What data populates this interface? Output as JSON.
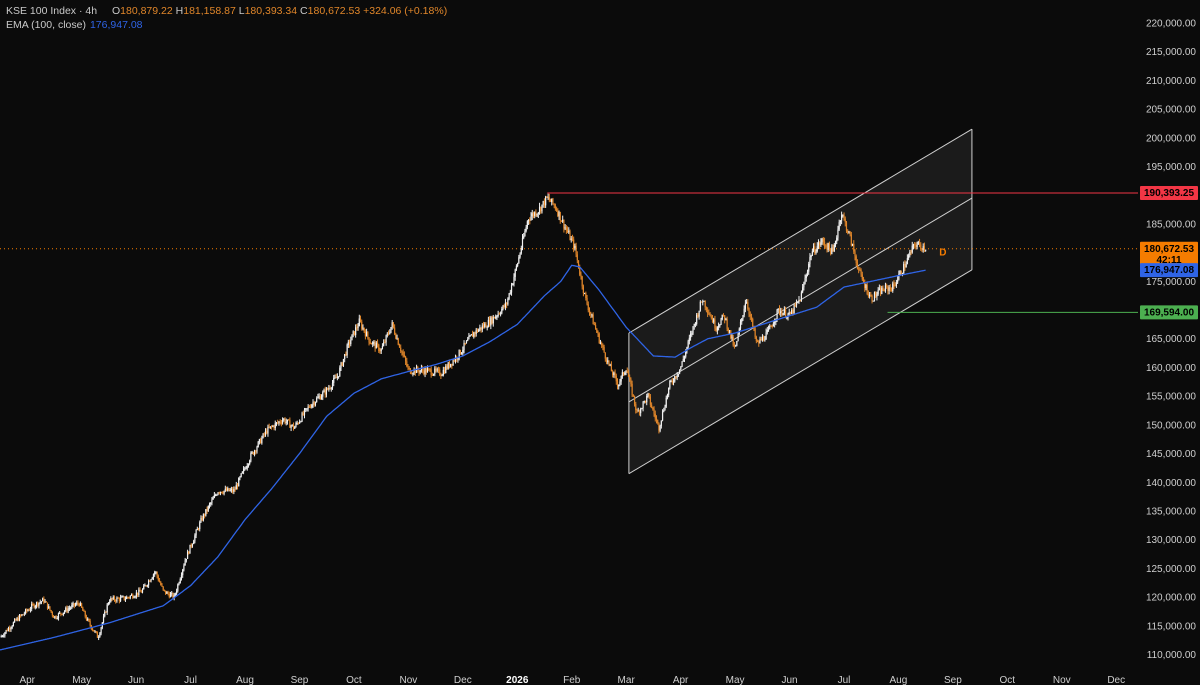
{
  "legend": {
    "symbol": "KSE 100 Index · 4h",
    "open_label": "O",
    "open": "180,879.22",
    "high_label": "H",
    "high": "181,158.87",
    "low_label": "L",
    "low": "180,393.34",
    "close_label": "C",
    "close": "180,672.53",
    "change": "+324.06 (+0.18%)",
    "ema_label": "EMA (100, close)",
    "ema_value": "176,947.08"
  },
  "colors": {
    "background": "#0b0b0b",
    "up_candle": "#f2f2f2",
    "down_candle": "#e0862a",
    "ema": "#2f64e6",
    "resistance": "#f23645",
    "support": "#4caf50",
    "last_price": "#f57c00",
    "channel_fill": "#2a2a2a",
    "channel_line": "#cfcfcf"
  },
  "chart_data": {
    "type": "candlestick",
    "title": "KSE 100 Index · 4h",
    "ylim": [
      108000,
      224000
    ],
    "y_ticks": [
      110000,
      115000,
      120000,
      125000,
      130000,
      135000,
      140000,
      145000,
      150000,
      155000,
      160000,
      165000,
      170000,
      175000,
      180000,
      185000,
      190000,
      195000,
      200000,
      205000,
      210000,
      215000,
      220000
    ],
    "y_tick_labels": [
      "110,000.00",
      "115,000.00",
      "120,000.00",
      "125,000.00",
      "130,000.00",
      "135,000.00",
      "140,000.00",
      "145,000.00",
      "150,000.00",
      "155,000.00",
      "160,000.00",
      "165,000.00",
      "170,000.00",
      "175,000.00",
      "180,000.00",
      "185,000.00",
      "190,000.00",
      "195,000.00",
      "200,000.00",
      "205,000.00",
      "210,000.00",
      "215,000.00",
      "220,000.00"
    ],
    "x_ticks": [
      {
        "t": 0.5,
        "label": "Apr",
        "bold": false
      },
      {
        "t": 1.5,
        "label": "May",
        "bold": false
      },
      {
        "t": 2.5,
        "label": "Jun",
        "bold": false
      },
      {
        "t": 3.5,
        "label": "Jul",
        "bold": false
      },
      {
        "t": 4.5,
        "label": "Aug",
        "bold": false
      },
      {
        "t": 5.5,
        "label": "Sep",
        "bold": false
      },
      {
        "t": 6.5,
        "label": "Oct",
        "bold": false
      },
      {
        "t": 7.5,
        "label": "Nov",
        "bold": false
      },
      {
        "t": 8.5,
        "label": "Dec",
        "bold": false
      },
      {
        "t": 9.5,
        "label": "2026",
        "bold": true
      },
      {
        "t": 10.5,
        "label": "Feb",
        "bold": false
      },
      {
        "t": 11.5,
        "label": "Mar",
        "bold": false
      },
      {
        "t": 12.5,
        "label": "Apr",
        "bold": false
      },
      {
        "t": 13.5,
        "label": "May",
        "bold": false
      },
      {
        "t": 14.5,
        "label": "Jun",
        "bold": false
      },
      {
        "t": 15.5,
        "label": "Jul",
        "bold": false
      },
      {
        "t": 16.5,
        "label": "Aug",
        "bold": false
      },
      {
        "t": 17.5,
        "label": "Sep",
        "bold": false
      },
      {
        "t": 18.5,
        "label": "Oct",
        "bold": false
      },
      {
        "t": 19.5,
        "label": "Nov",
        "bold": false
      },
      {
        "t": 20.5,
        "label": "Dec",
        "bold": false
      }
    ],
    "price_path": [
      [
        0.0,
        113000
      ],
      [
        0.3,
        116000
      ],
      [
        0.6,
        118500
      ],
      [
        0.8,
        119500
      ],
      [
        1.0,
        116500
      ],
      [
        1.25,
        118000
      ],
      [
        1.45,
        119000
      ],
      [
        1.6,
        116000
      ],
      [
        1.8,
        113000
      ],
      [
        2.0,
        119500
      ],
      [
        2.3,
        119800
      ],
      [
        2.6,
        121000
      ],
      [
        2.85,
        124500
      ],
      [
        3.0,
        121000
      ],
      [
        3.2,
        120000
      ],
      [
        3.4,
        126500
      ],
      [
        3.7,
        133500
      ],
      [
        4.0,
        138500
      ],
      [
        4.3,
        138500
      ],
      [
        4.6,
        144500
      ],
      [
        4.9,
        149000
      ],
      [
        5.2,
        151000
      ],
      [
        5.4,
        149500
      ],
      [
        5.7,
        153500
      ],
      [
        6.0,
        156000
      ],
      [
        6.2,
        158500
      ],
      [
        6.4,
        164000
      ],
      [
        6.6,
        168000
      ],
      [
        6.8,
        164500
      ],
      [
        7.0,
        163000
      ],
      [
        7.2,
        167500
      ],
      [
        7.5,
        159500
      ],
      [
        7.8,
        159500
      ],
      [
        8.1,
        159000
      ],
      [
        8.4,
        162000
      ],
      [
        8.7,
        166000
      ],
      [
        9.0,
        168000
      ],
      [
        9.3,
        171000
      ],
      [
        9.5,
        178000
      ],
      [
        9.7,
        186000
      ],
      [
        9.9,
        187500
      ],
      [
        10.05,
        189500
      ],
      [
        10.2,
        188000
      ],
      [
        10.35,
        185000
      ],
      [
        10.55,
        181000
      ],
      [
        10.75,
        172000
      ],
      [
        11.0,
        165000
      ],
      [
        11.2,
        160000
      ],
      [
        11.35,
        157000
      ],
      [
        11.5,
        160000
      ],
      [
        11.7,
        152000
      ],
      [
        11.9,
        155000
      ],
      [
        12.1,
        149500
      ],
      [
        12.3,
        157000
      ],
      [
        12.5,
        160000
      ],
      [
        12.7,
        166000
      ],
      [
        12.9,
        172000
      ],
      [
        13.15,
        167000
      ],
      [
        13.3,
        169000
      ],
      [
        13.5,
        163000
      ],
      [
        13.7,
        172000
      ],
      [
        13.9,
        164000
      ],
      [
        14.1,
        166000
      ],
      [
        14.3,
        170000
      ],
      [
        14.5,
        169000
      ],
      [
        14.7,
        172000
      ],
      [
        14.9,
        180000
      ],
      [
        15.1,
        182000
      ],
      [
        15.3,
        180000
      ],
      [
        15.45,
        187000
      ],
      [
        15.6,
        183000
      ],
      [
        15.8,
        176000
      ],
      [
        16.0,
        172000
      ],
      [
        16.2,
        173500
      ],
      [
        16.4,
        174000
      ],
      [
        16.6,
        177500
      ],
      [
        16.8,
        181500
      ],
      [
        17.0,
        180900
      ]
    ],
    "ema_path": [
      [
        0.0,
        110800
      ],
      [
        1.0,
        113000
      ],
      [
        2.0,
        115500
      ],
      [
        3.0,
        118500
      ],
      [
        3.5,
        122000
      ],
      [
        4.0,
        127000
      ],
      [
        4.5,
        133500
      ],
      [
        5.0,
        139000
      ],
      [
        5.5,
        145000
      ],
      [
        6.0,
        151500
      ],
      [
        6.5,
        155500
      ],
      [
        7.0,
        158000
      ],
      [
        7.5,
        159300
      ],
      [
        8.0,
        160500
      ],
      [
        8.5,
        162000
      ],
      [
        9.0,
        164500
      ],
      [
        9.5,
        167500
      ],
      [
        10.0,
        172500
      ],
      [
        10.3,
        175000
      ],
      [
        10.5,
        177800
      ],
      [
        10.65,
        177500
      ],
      [
        11.0,
        173500
      ],
      [
        11.5,
        167000
      ],
      [
        12.0,
        162000
      ],
      [
        12.4,
        161800
      ],
      [
        12.7,
        163500
      ],
      [
        13.0,
        165000
      ],
      [
        13.5,
        166000
      ],
      [
        14.0,
        167500
      ],
      [
        14.5,
        169000
      ],
      [
        15.0,
        170500
      ],
      [
        15.5,
        174000
      ],
      [
        16.0,
        175000
      ],
      [
        16.5,
        176000
      ],
      [
        17.0,
        176947
      ]
    ],
    "channel": {
      "t_start": 11.55,
      "t_end": 17.85,
      "upper": [
        166000,
        201500
      ],
      "middle": [
        154000,
        189500
      ],
      "lower": [
        141500,
        177000
      ]
    },
    "levels": [
      {
        "name": "resistance",
        "value": 190393.25,
        "label": "190,393.25",
        "t_from": 10.05
      },
      {
        "name": "support",
        "value": 169594.0,
        "label": "169,594.00",
        "t_from": 16.3
      }
    ],
    "last_price": {
      "value": 180672.53,
      "label": "180,672.53",
      "countdown": "42:11"
    },
    "ema_tag": {
      "value": 176947.08,
      "label": "176,947.08"
    },
    "marker": {
      "t": 17.25,
      "value": 180200,
      "label": "D"
    }
  }
}
